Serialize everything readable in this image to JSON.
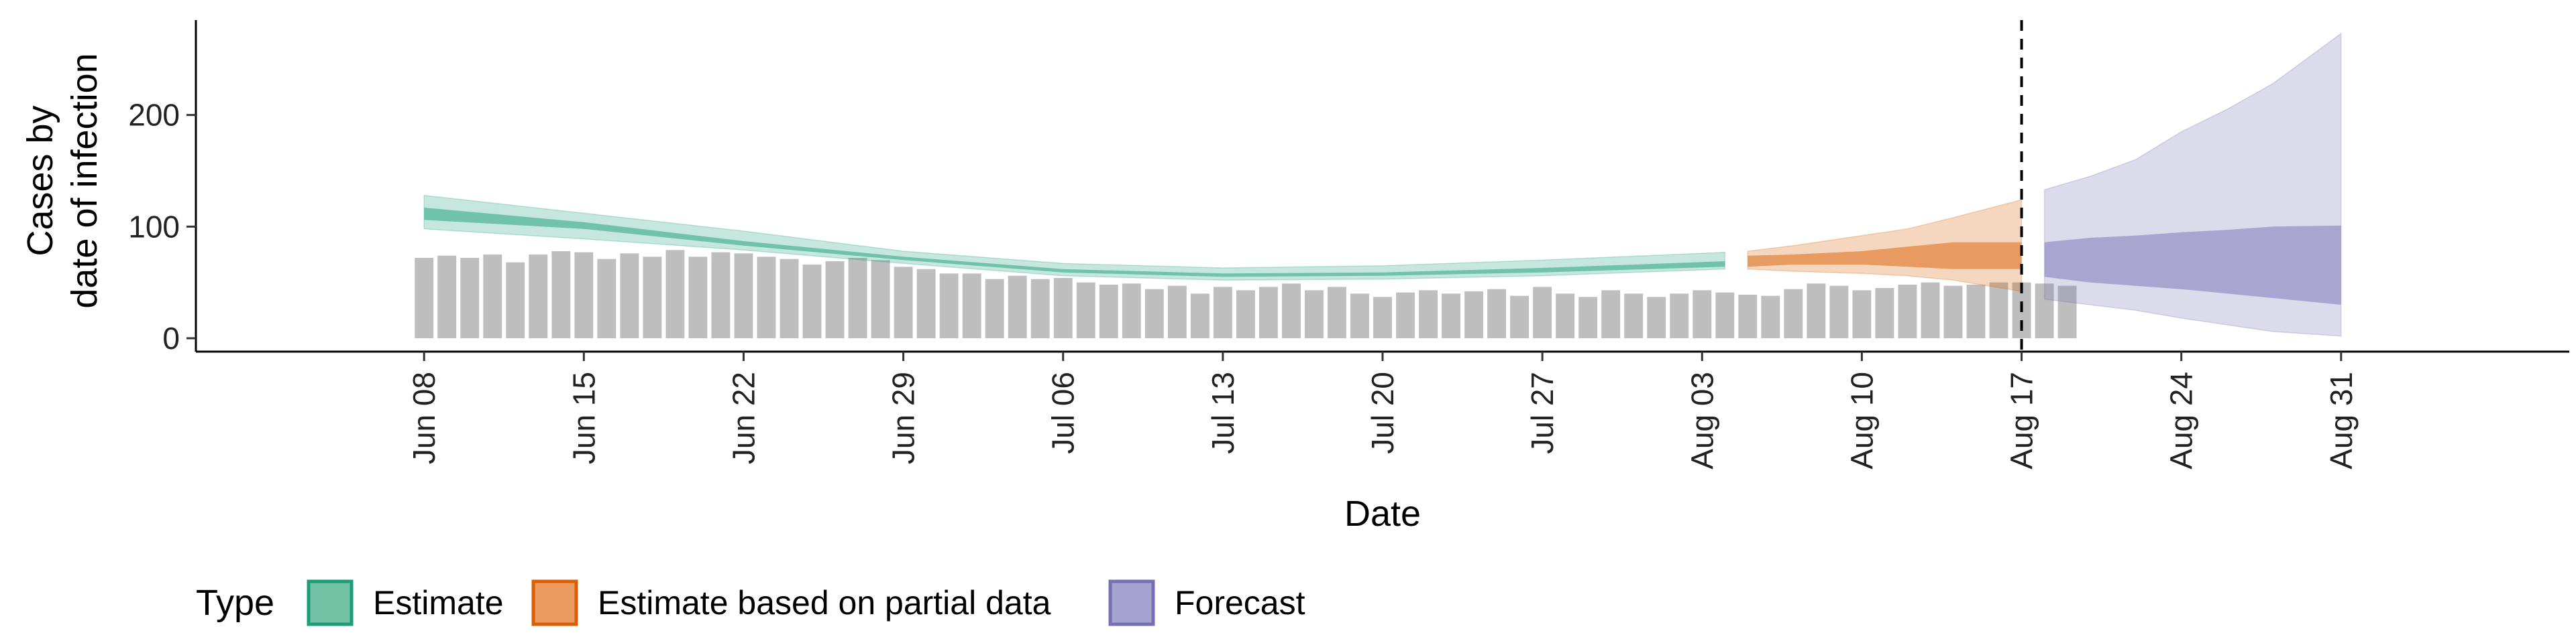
{
  "chart_data": {
    "type": "bar",
    "title": "",
    "xlabel": "Date",
    "ylabel": [
      "Cases by",
      "date of infection"
    ],
    "ylim": [
      -12,
      285
    ],
    "yticks": [
      0,
      100,
      200
    ],
    "xlim": [
      "2020-05-29",
      "2020-09-10"
    ],
    "xticks": [
      {
        "date": "2020-06-08",
        "label": "Jun 08"
      },
      {
        "date": "2020-06-15",
        "label": "Jun 15"
      },
      {
        "date": "2020-06-22",
        "label": "Jun 22"
      },
      {
        "date": "2020-06-29",
        "label": "Jun 29"
      },
      {
        "date": "2020-07-06",
        "label": "Jul 06"
      },
      {
        "date": "2020-07-13",
        "label": "Jul 13"
      },
      {
        "date": "2020-07-20",
        "label": "Jul 20"
      },
      {
        "date": "2020-07-27",
        "label": "Jul 27"
      },
      {
        "date": "2020-08-03",
        "label": "Aug 03"
      },
      {
        "date": "2020-08-10",
        "label": "Aug 10"
      },
      {
        "date": "2020-08-17",
        "label": "Aug 17"
      },
      {
        "date": "2020-08-24",
        "label": "Aug 24"
      },
      {
        "date": "2020-08-31",
        "label": "Aug 31"
      }
    ],
    "vline_date": "2020-08-17",
    "bars_start": "2020-06-08",
    "bars": [
      72,
      74,
      72,
      75,
      68,
      75,
      78,
      77,
      71,
      76,
      73,
      79,
      73,
      77,
      76,
      73,
      71,
      66,
      69,
      72,
      70,
      64,
      62,
      58,
      58,
      53,
      56,
      53,
      54,
      50,
      48,
      49,
      44,
      47,
      40,
      46,
      43,
      46,
      49,
      43,
      46,
      40,
      37,
      41,
      43,
      40,
      42,
      44,
      38,
      46,
      40,
      37,
      43,
      40,
      37,
      40,
      43,
      41,
      39,
      38,
      44,
      49,
      47,
      43,
      45,
      48,
      50,
      47,
      48,
      50,
      50,
      49,
      47
    ],
    "bar_color": "#bebebe",
    "legend_title": "Type",
    "legend": [
      {
        "label": "Estimate",
        "fill": "#74c2a5",
        "stroke": "#1b9e77"
      },
      {
        "label": "Estimate based on partial data",
        "fill": "#eb9b5f",
        "stroke": "#d95f02"
      },
      {
        "label": "Forecast",
        "fill": "#a7a3d1",
        "stroke": "#7570b3"
      }
    ],
    "ribbons": [
      {
        "name": "Estimate",
        "color": "#1b9e77",
        "dates": [
          "2020-06-08",
          "2020-06-15",
          "2020-06-22",
          "2020-06-29",
          "2020-07-06",
          "2020-07-13",
          "2020-07-20",
          "2020-07-27",
          "2020-08-04"
        ],
        "lower90": [
          98,
          89,
          79,
          67,
          56,
          52,
          53,
          56,
          62
        ],
        "upper90": [
          128,
          112,
          96,
          78,
          67,
          63,
          65,
          70,
          77
        ],
        "lower50": [
          106,
          98,
          83,
          70,
          59,
          55,
          56,
          59,
          64
        ],
        "upper50": [
          117,
          104,
          87,
          73,
          62,
          58,
          59,
          63,
          69
        ]
      },
      {
        "name": "Estimate based on partial data",
        "color": "#d95f02",
        "dates": [
          "2020-08-05",
          "2020-08-07",
          "2020-08-10",
          "2020-08-12",
          "2020-08-14",
          "2020-08-17"
        ],
        "lower90": [
          62,
          60,
          58,
          56,
          52,
          42
        ],
        "upper90": [
          78,
          83,
          92,
          98,
          108,
          124
        ],
        "lower50": [
          64,
          66,
          66,
          64,
          62,
          62
        ],
        "upper50": [
          74,
          75,
          78,
          82,
          86,
          86
        ]
      },
      {
        "name": "Forecast",
        "color": "#7570b3",
        "dates": [
          "2020-08-18",
          "2020-08-20",
          "2020-08-22",
          "2020-08-24",
          "2020-08-26",
          "2020-08-28",
          "2020-08-31"
        ],
        "lower90": [
          35,
          30,
          25,
          18,
          12,
          6,
          2
        ],
        "upper90": [
          133,
          145,
          160,
          185,
          205,
          228,
          273
        ],
        "lower50": [
          55,
          50,
          47,
          44,
          40,
          36,
          30
        ],
        "upper50": [
          86,
          90,
          92,
          95,
          97,
          100,
          101
        ]
      }
    ]
  }
}
